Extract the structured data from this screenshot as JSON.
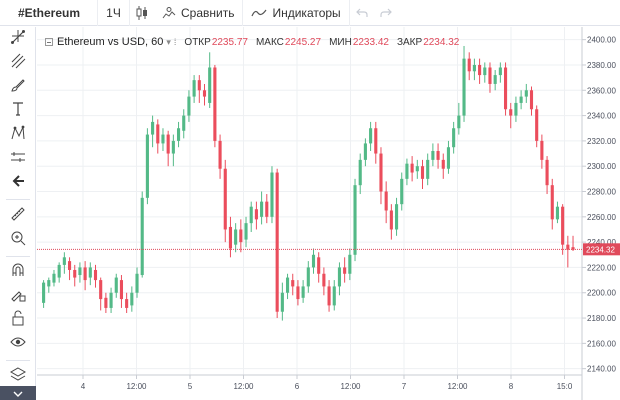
{
  "toolbar": {
    "symbol": "#Ethereum",
    "interval": "1Ч",
    "compare_label": "Сравнить",
    "indicators_label": "Индикаторы"
  },
  "legend": {
    "title": "Ethereum vs USD, 60",
    "open_label": "ОТКР",
    "open_value": "2235.77",
    "high_label": "МАКС",
    "high_value": "2245.27",
    "low_label": "МИН",
    "low_value": "2233.42",
    "close_label": "ЗАКР",
    "close_value": "2234.32"
  },
  "left_tools": [
    "cursor-icon",
    "trend-line-icon",
    "pitchfork-icon",
    "brush-icon",
    "text-icon",
    "pattern-icon",
    "measure-tool-icon",
    "back-arrow-icon",
    "ruler-icon",
    "zoom-icon",
    "magnet-icon",
    "lock-drawing-icon",
    "lock-icon",
    "eye-icon",
    "layers-icon"
  ],
  "colors": {
    "up": "#53b987",
    "down": "#eb4d5c",
    "price_line": "#e04a5b",
    "grid": "#eef0f3"
  },
  "chart_data": {
    "type": "candlestick",
    "title": "Ethereum vs USD, 60",
    "ylim": [
      2135,
      2410
    ],
    "y_ticks": [
      "2400.00",
      "2380.00",
      "2360.00",
      "2340.00",
      "2320.00",
      "2300.00",
      "2280.00",
      "2260.00",
      "2240.00",
      "2220.00",
      "2200.00",
      "2180.00",
      "2160.00",
      "2140.00"
    ],
    "x_ticks": [
      "4",
      "12:00",
      "5",
      "12:00",
      "6",
      "12:00",
      "7",
      "12:00",
      "8",
      "15:0"
    ],
    "last_price": "2234.32",
    "candles": [
      [
        2192,
        2208,
        2188,
        2210
      ],
      [
        2205,
        2210,
        2200,
        2212
      ],
      [
        2208,
        2215,
        2205,
        2218
      ],
      [
        2212,
        2222,
        2208,
        2224
      ],
      [
        2222,
        2228,
        2215,
        2232
      ],
      [
        2225,
        2218,
        2210,
        2228
      ],
      [
        2218,
        2212,
        2205,
        2222
      ],
      [
        2214,
        2220,
        2208,
        2224
      ],
      [
        2220,
        2210,
        2202,
        2225
      ],
      [
        2212,
        2220,
        2206,
        2224
      ],
      [
        2218,
        2210,
        2204,
        2222
      ],
      [
        2210,
        2195,
        2186,
        2212
      ],
      [
        2196,
        2188,
        2184,
        2200
      ],
      [
        2188,
        2200,
        2184,
        2204
      ],
      [
        2200,
        2212,
        2196,
        2215
      ],
      [
        2210,
        2195,
        2188,
        2214
      ],
      [
        2195,
        2188,
        2184,
        2200
      ],
      [
        2190,
        2200,
        2185,
        2205
      ],
      [
        2200,
        2215,
        2196,
        2220
      ],
      [
        2214,
        2275,
        2212,
        2280
      ],
      [
        2275,
        2325,
        2270,
        2330
      ],
      [
        2325,
        2335,
        2315,
        2340
      ],
      [
        2333,
        2318,
        2310,
        2337
      ],
      [
        2318,
        2325,
        2312,
        2330
      ],
      [
        2325,
        2310,
        2300,
        2328
      ],
      [
        2310,
        2320,
        2300,
        2325
      ],
      [
        2320,
        2330,
        2315,
        2335
      ],
      [
        2328,
        2340,
        2322,
        2345
      ],
      [
        2340,
        2355,
        2335,
        2360
      ],
      [
        2355,
        2368,
        2350,
        2372
      ],
      [
        2368,
        2360,
        2350,
        2372
      ],
      [
        2360,
        2355,
        2348,
        2365
      ],
      [
        2350,
        2378,
        2346,
        2390
      ],
      [
        2378,
        2320,
        2315,
        2380
      ],
      [
        2320,
        2298,
        2290,
        2325
      ],
      [
        2298,
        2250,
        2240,
        2305
      ],
      [
        2252,
        2235,
        2228,
        2260
      ],
      [
        2238,
        2250,
        2232,
        2255
      ],
      [
        2250,
        2240,
        2232,
        2258
      ],
      [
        2242,
        2255,
        2236,
        2260
      ],
      [
        2255,
        2268,
        2248,
        2272
      ],
      [
        2266,
        2258,
        2250,
        2272
      ],
      [
        2260,
        2272,
        2254,
        2280
      ],
      [
        2272,
        2260,
        2255,
        2278
      ],
      [
        2260,
        2295,
        2255,
        2300
      ],
      [
        2295,
        2185,
        2180,
        2298
      ],
      [
        2185,
        2200,
        2178,
        2208
      ],
      [
        2200,
        2212,
        2195,
        2215
      ],
      [
        2210,
        2205,
        2198,
        2215
      ],
      [
        2205,
        2195,
        2190,
        2210
      ],
      [
        2196,
        2205,
        2192,
        2210
      ],
      [
        2205,
        2220,
        2200,
        2225
      ],
      [
        2220,
        2230,
        2215,
        2235
      ],
      [
        2228,
        2215,
        2208,
        2232
      ],
      [
        2215,
        2205,
        2198,
        2220
      ],
      [
        2205,
        2190,
        2185,
        2210
      ],
      [
        2190,
        2205,
        2186,
        2210
      ],
      [
        2205,
        2220,
        2198,
        2224
      ],
      [
        2220,
        2215,
        2208,
        2228
      ],
      [
        2215,
        2230,
        2210,
        2235
      ],
      [
        2230,
        2285,
        2225,
        2290
      ],
      [
        2285,
        2305,
        2278,
        2310
      ],
      [
        2305,
        2318,
        2300,
        2322
      ],
      [
        2318,
        2330,
        2312,
        2335
      ],
      [
        2330,
        2310,
        2302,
        2335
      ],
      [
        2310,
        2280,
        2270,
        2315
      ],
      [
        2280,
        2265,
        2255,
        2288
      ],
      [
        2265,
        2250,
        2242,
        2270
      ],
      [
        2250,
        2270,
        2245,
        2275
      ],
      [
        2270,
        2290,
        2265,
        2295
      ],
      [
        2290,
        2302,
        2285,
        2306
      ],
      [
        2302,
        2295,
        2288,
        2308
      ],
      [
        2296,
        2300,
        2290,
        2305
      ],
      [
        2300,
        2290,
        2282,
        2305
      ],
      [
        2290,
        2305,
        2285,
        2310
      ],
      [
        2305,
        2312,
        2300,
        2318
      ],
      [
        2312,
        2305,
        2298,
        2318
      ],
      [
        2305,
        2298,
        2290,
        2310
      ],
      [
        2298,
        2315,
        2294,
        2320
      ],
      [
        2315,
        2330,
        2310,
        2335
      ],
      [
        2330,
        2340,
        2325,
        2350
      ],
      [
        2340,
        2385,
        2335,
        2395
      ],
      [
        2385,
        2375,
        2368,
        2390
      ],
      [
        2375,
        2380,
        2368,
        2385
      ],
      [
        2380,
        2372,
        2365,
        2385
      ],
      [
        2372,
        2378,
        2366,
        2382
      ],
      [
        2378,
        2365,
        2358,
        2382
      ],
      [
        2365,
        2372,
        2360,
        2376
      ],
      [
        2372,
        2378,
        2366,
        2382
      ],
      [
        2378,
        2345,
        2340,
        2382
      ],
      [
        2345,
        2340,
        2330,
        2350
      ],
      [
        2340,
        2350,
        2335,
        2355
      ],
      [
        2350,
        2355,
        2345,
        2360
      ],
      [
        2355,
        2360,
        2350,
        2365
      ],
      [
        2360,
        2345,
        2340,
        2363
      ],
      [
        2345,
        2320,
        2315,
        2348
      ],
      [
        2320,
        2305,
        2298,
        2325
      ],
      [
        2305,
        2285,
        2278,
        2308
      ],
      [
        2285,
        2258,
        2250,
        2290
      ],
      [
        2258,
        2268,
        2255,
        2272
      ],
      [
        2268,
        2238,
        2230,
        2270
      ],
      [
        2238,
        2234,
        2220,
        2245
      ],
      [
        2236,
        2234,
        2233,
        2245
      ]
    ]
  }
}
